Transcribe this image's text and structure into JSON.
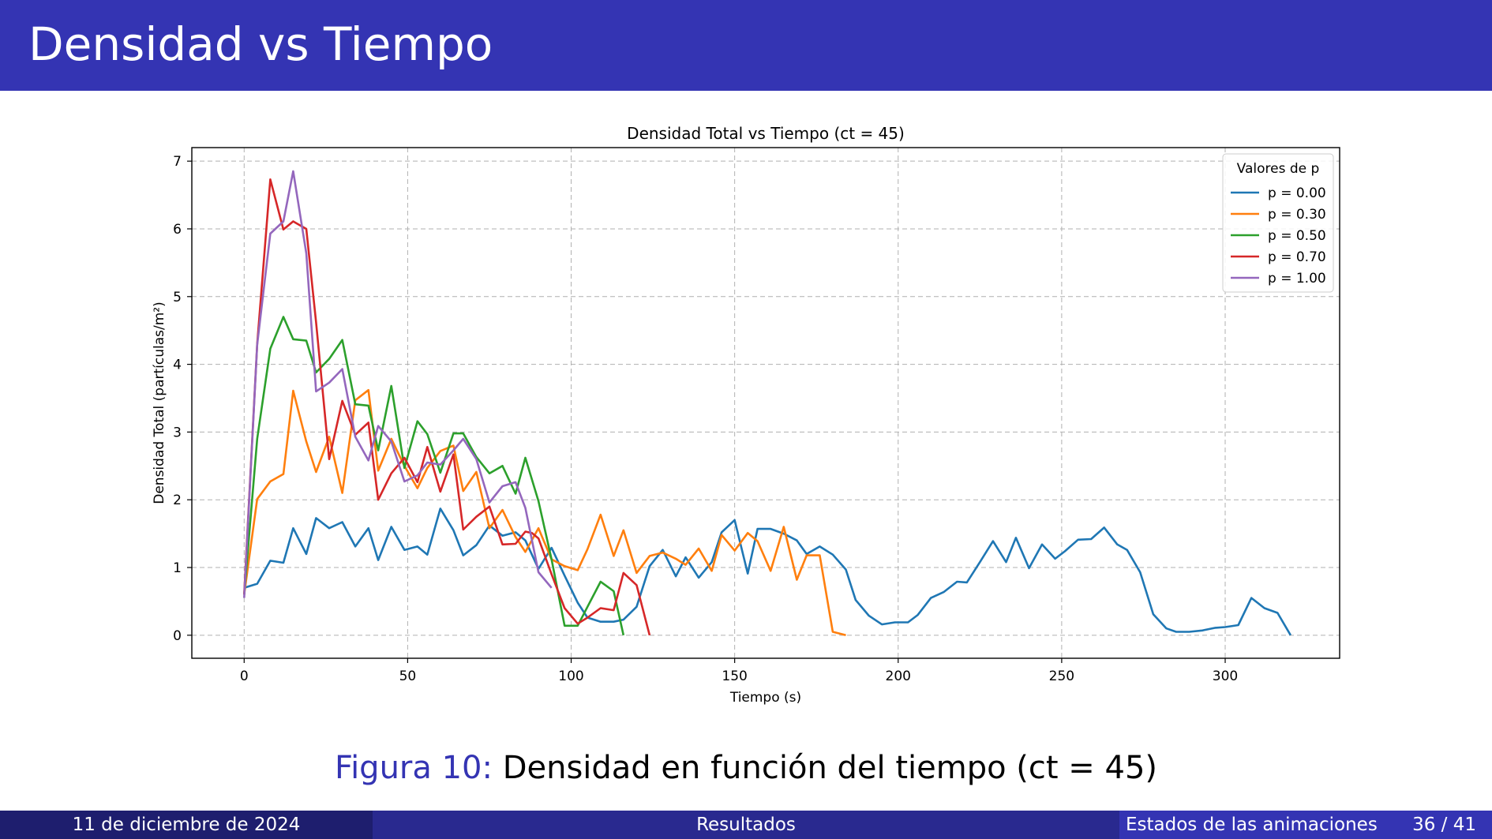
{
  "header": {
    "title": "Densidad vs Tiempo"
  },
  "caption": {
    "figure_label": "Figura 10:",
    "text": "Densidad en función del tiempo (ct = 45)"
  },
  "footer": {
    "date": "11 de diciembre de 2024",
    "section": "Resultados",
    "subsection": "Estados de las animaciones",
    "page": "36 / 41"
  },
  "chart_data": {
    "type": "line",
    "title": "Densidad Total vs Tiempo (ct = 45)",
    "xlabel": "Tiempo (s)",
    "ylabel": "Densidad Total (partículas/m²)",
    "xlim": [
      -16,
      335
    ],
    "ylim": [
      -0.34,
      7.2
    ],
    "xticks": [
      0,
      50,
      100,
      150,
      200,
      250,
      300
    ],
    "yticks": [
      0,
      1,
      2,
      3,
      4,
      5,
      6,
      7
    ],
    "grid": true,
    "legend": {
      "title": "Valores de p",
      "placement": "top-right"
    },
    "series": [
      {
        "name": "p = 0.00",
        "color": "#1f77b4",
        "x": [
          0,
          4,
          8,
          12,
          15,
          19,
          22,
          26,
          30,
          34,
          38,
          41,
          45,
          49,
          53,
          56,
          60,
          64,
          67,
          71,
          75,
          79,
          83,
          86,
          90,
          94,
          98,
          102,
          105,
          109,
          113,
          116,
          120,
          124,
          128,
          132,
          135,
          139,
          143,
          146,
          150,
          154,
          157,
          161,
          165,
          169,
          172,
          176,
          180,
          184,
          187,
          191,
          195,
          199,
          203,
          206,
          210,
          214,
          218,
          221,
          225,
          229,
          233,
          236,
          240,
          244,
          248,
          251,
          255,
          259,
          263,
          267,
          270,
          274,
          278,
          282,
          285,
          289,
          293,
          297,
          300,
          304,
          308,
          312,
          316,
          320
        ],
        "y": [
          0.7,
          0.76,
          1.1,
          1.07,
          1.58,
          1.2,
          1.73,
          1.58,
          1.67,
          1.31,
          1.58,
          1.11,
          1.6,
          1.26,
          1.31,
          1.19,
          1.87,
          1.55,
          1.18,
          1.33,
          1.62,
          1.47,
          1.52,
          1.4,
          0.98,
          1.29,
          0.88,
          0.48,
          0.26,
          0.2,
          0.2,
          0.23,
          0.42,
          1.02,
          1.26,
          0.87,
          1.15,
          0.85,
          1.08,
          1.52,
          1.7,
          0.91,
          1.57,
          1.57,
          1.5,
          1.4,
          1.2,
          1.31,
          1.19,
          0.97,
          0.52,
          0.29,
          0.16,
          0.19,
          0.19,
          0.3,
          0.55,
          0.64,
          0.79,
          0.78,
          1.08,
          1.39,
          1.08,
          1.44,
          0.99,
          1.34,
          1.13,
          1.24,
          1.41,
          1.42,
          1.59,
          1.34,
          1.26,
          0.93,
          0.31,
          0.1,
          0.05,
          0.05,
          0.07,
          0.11,
          0.12,
          0.15,
          0.55,
          0.4,
          0.33,
          0.0
        ]
      },
      {
        "name": "p = 0.30",
        "color": "#ff7f0e",
        "x": [
          0,
          4,
          8,
          12,
          15,
          19,
          22,
          26,
          30,
          34,
          38,
          41,
          45,
          49,
          53,
          56,
          60,
          64,
          67,
          71,
          75,
          79,
          83,
          86,
          90,
          94,
          98,
          102,
          105,
          109,
          113,
          116,
          120,
          124,
          128,
          132,
          135,
          139,
          143,
          146,
          150,
          154,
          157,
          161,
          165,
          169,
          172,
          176,
          180,
          184
        ],
        "y": [
          0.6,
          2.01,
          2.27,
          2.38,
          3.61,
          2.86,
          2.41,
          2.93,
          2.1,
          3.47,
          3.62,
          2.43,
          2.9,
          2.5,
          2.17,
          2.47,
          2.72,
          2.8,
          2.13,
          2.41,
          1.58,
          1.85,
          1.45,
          1.23,
          1.58,
          1.12,
          1.02,
          0.96,
          1.27,
          1.78,
          1.17,
          1.55,
          0.92,
          1.17,
          1.22,
          1.13,
          1.04,
          1.28,
          0.95,
          1.48,
          1.25,
          1.51,
          1.39,
          0.95,
          1.6,
          0.82,
          1.18,
          1.18,
          0.05,
          0.0
        ]
      },
      {
        "name": "p = 0.50",
        "color": "#2ca02c",
        "x": [
          0,
          4,
          8,
          12,
          15,
          19,
          22,
          26,
          30,
          34,
          38,
          41,
          45,
          49,
          53,
          56,
          60,
          64,
          67,
          71,
          75,
          79,
          83,
          86,
          90,
          94,
          98,
          102,
          105,
          109,
          113,
          116
        ],
        "y": [
          0.6,
          2.9,
          4.23,
          4.7,
          4.37,
          4.35,
          3.88,
          4.08,
          4.36,
          3.41,
          3.39,
          2.73,
          3.68,
          2.47,
          3.16,
          2.97,
          2.4,
          2.98,
          2.98,
          2.63,
          2.39,
          2.5,
          2.09,
          2.62,
          1.98,
          1.12,
          0.14,
          0.14,
          0.42,
          0.79,
          0.65,
          0.0
        ]
      },
      {
        "name": "p = 0.70",
        "color": "#d62728",
        "x": [
          0,
          4,
          8,
          12,
          15,
          19,
          22,
          26,
          30,
          34,
          38,
          41,
          45,
          49,
          53,
          56,
          60,
          64,
          67,
          71,
          75,
          79,
          83,
          86,
          88,
          90,
          94,
          98,
          102,
          105,
          109,
          113,
          116,
          120,
          124
        ],
        "y": [
          0.6,
          4.3,
          6.73,
          5.99,
          6.11,
          6.0,
          4.62,
          2.6,
          3.46,
          2.96,
          3.14,
          2.0,
          2.39,
          2.62,
          2.26,
          2.78,
          2.12,
          2.67,
          1.56,
          1.75,
          1.9,
          1.34,
          1.35,
          1.53,
          1.51,
          1.43,
          0.9,
          0.4,
          0.17,
          0.26,
          0.4,
          0.37,
          0.92,
          0.74,
          0.0
        ]
      },
      {
        "name": "p = 1.00",
        "color": "#9467bd",
        "x": [
          0,
          4,
          8,
          12,
          15,
          19,
          22,
          26,
          30,
          34,
          38,
          41,
          45,
          49,
          53,
          56,
          60,
          64,
          67,
          71,
          75,
          79,
          83,
          86,
          90,
          94
        ],
        "y": [
          0.55,
          4.29,
          5.93,
          6.11,
          6.85,
          5.64,
          3.6,
          3.73,
          3.93,
          2.93,
          2.58,
          3.09,
          2.86,
          2.27,
          2.36,
          2.55,
          2.52,
          2.73,
          2.9,
          2.6,
          1.96,
          2.2,
          2.26,
          1.88,
          0.93,
          0.7
        ]
      }
    ]
  }
}
